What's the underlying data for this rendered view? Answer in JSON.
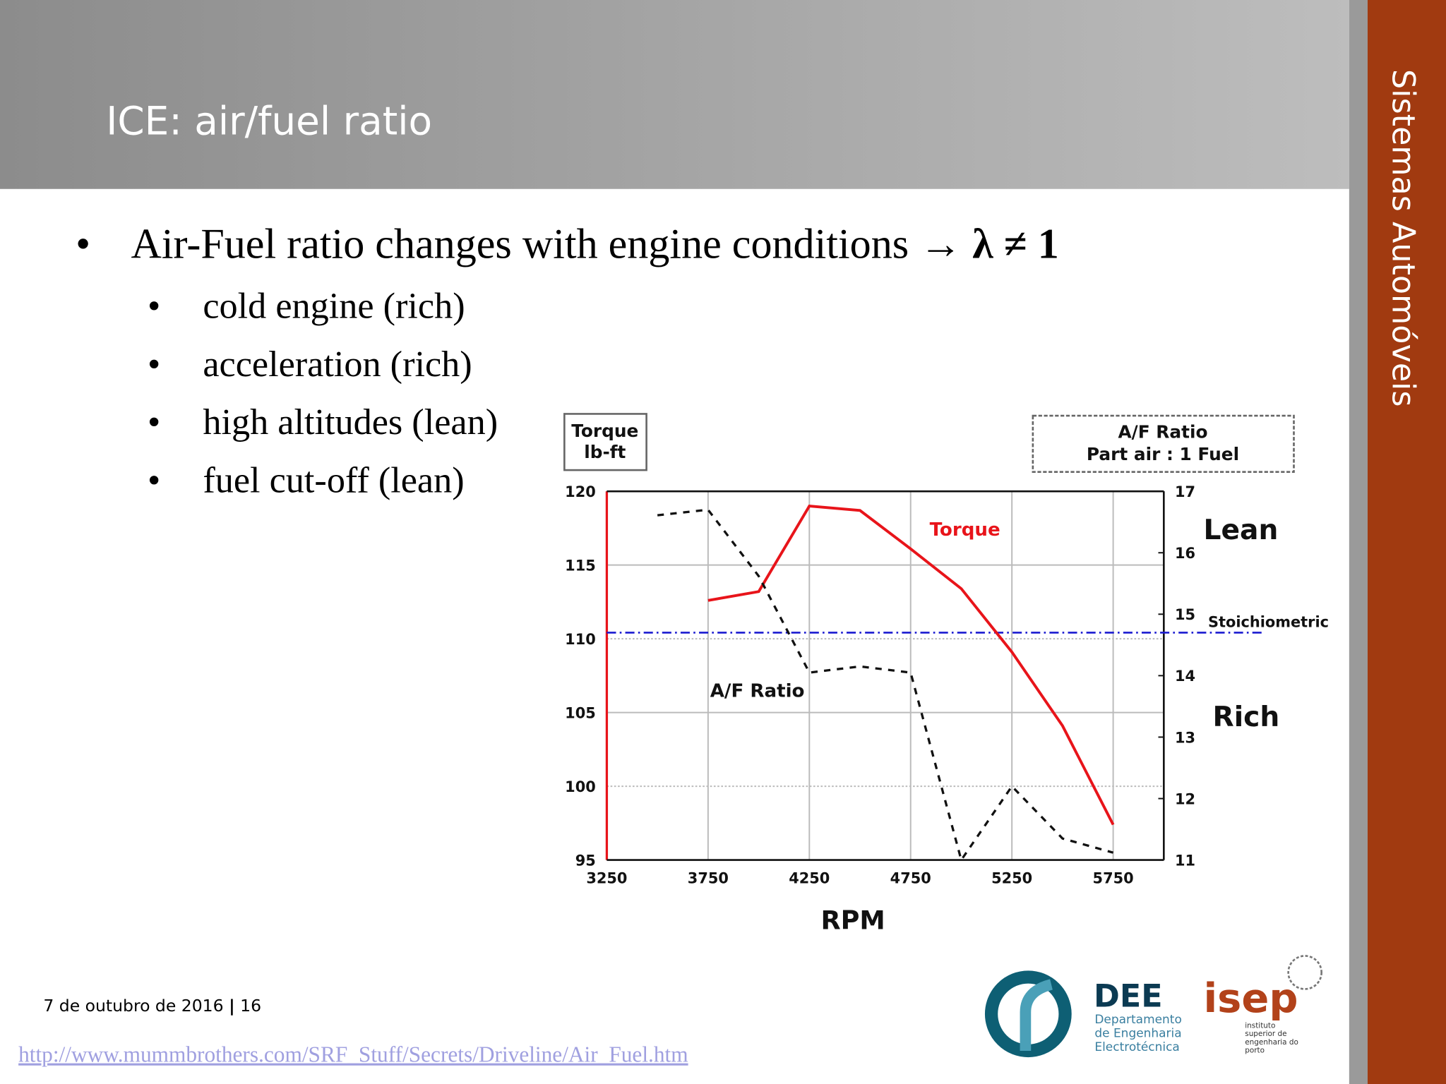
{
  "header": {
    "title": "ICE: air/fuel ratio"
  },
  "side_title": "Sistemas Automóveis",
  "bullets": {
    "main": [
      "Air-Fuel ratio changes with engine conditions →",
      "λ ≠ 1"
    ],
    "sub": [
      "cold engine (rich)",
      "acceleration (rich)",
      "high altitudes (lean)",
      "fuel cut-off (lean)"
    ]
  },
  "chart_data": {
    "type": "line",
    "y_label": [
      "Torque",
      "lb-ft"
    ],
    "y2_label": [
      "A/F Ratio",
      "Part air : 1 Fuel"
    ],
    "x_label": "RPM",
    "x": [
      3500,
      3750,
      4000,
      4250,
      4500,
      4750,
      5000,
      5250,
      5500,
      5750
    ],
    "series": [
      {
        "name": "Torque",
        "color": "#e8141a",
        "values": [
          null,
          112.6,
          113.2,
          119,
          118.7,
          116.1,
          113.4,
          109.1,
          104.1,
          97.4
        ]
      },
      {
        "name": "A/F Ratio",
        "color": "#111111",
        "axis": "y2",
        "values": [
          16.61,
          16.7,
          15.62,
          14.05,
          14.15,
          14.05,
          11.0,
          12.2,
          11.35,
          11.12
        ]
      }
    ],
    "reference_lines": [
      {
        "value": 14.7,
        "label": "Stoichiometric",
        "axis": "y2",
        "color": "#1a1ad0"
      }
    ],
    "annotations": [
      "Lean",
      "Rich"
    ],
    "xlim": [
      3250,
      6000
    ],
    "xticks": [
      3250,
      3750,
      4250,
      4750,
      5250,
      5750
    ],
    "ylim": [
      95,
      120
    ],
    "yticks": [
      95,
      100,
      105,
      110,
      115,
      120
    ],
    "y2lim": [
      11,
      17
    ],
    "y2ticks": [
      11,
      12,
      13,
      14,
      15,
      16,
      17
    ],
    "grid": true
  },
  "footer": {
    "date": "7 de outubro de 2016",
    "separator": "|",
    "page": "16",
    "source": "http://www.mummbrothers.com/SRF_Stuff/Secrets/Driveline/Air_Fuel.htm"
  },
  "logos": {
    "dee": "DEE",
    "dee_sub": [
      "Departamento",
      "de Engenharia",
      "Electrotécnica"
    ],
    "isep": "isep",
    "isep_sub": [
      "instituto",
      "superior de",
      "engenharia do",
      "porto"
    ]
  }
}
